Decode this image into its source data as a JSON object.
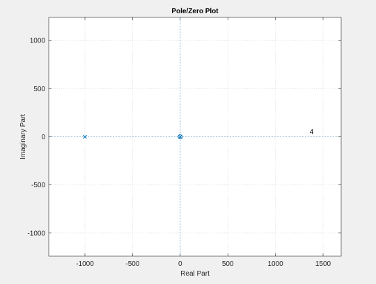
{
  "chart_data": {
    "type": "scatter",
    "title": "Pole/Zero Plot",
    "xlabel": "Real Part",
    "ylabel": "Imaginary Part",
    "xlim": [
      -1380,
      1690
    ],
    "ylim": [
      -1240,
      1240
    ],
    "xticks": [
      -1000,
      -500,
      0,
      500,
      1000,
      1500
    ],
    "yticks": [
      -1000,
      -500,
      0,
      500,
      1000
    ],
    "xtick_labels": [
      "-1000",
      "-500",
      "0",
      "500",
      "1000",
      "1500"
    ],
    "ytick_labels": [
      "-1000",
      "-500",
      "0",
      "500",
      "1000"
    ],
    "grid": true,
    "zero_lines": true,
    "poles": [
      {
        "x": -1000,
        "y": 0
      },
      {
        "x": 0,
        "y": 0
      }
    ],
    "zeros": [
      {
        "x": 0,
        "y": 0
      }
    ],
    "annotations": [
      {
        "text": "4",
        "x": 1380,
        "y": 30
      }
    ],
    "colors": {
      "marker": "#0072bd",
      "zero_line": "#7fb3d5",
      "grid": "#e3e3e3",
      "axes_background": "#ffffff",
      "figure_background": "#f0f0f0",
      "axes_border": "#262626"
    }
  }
}
